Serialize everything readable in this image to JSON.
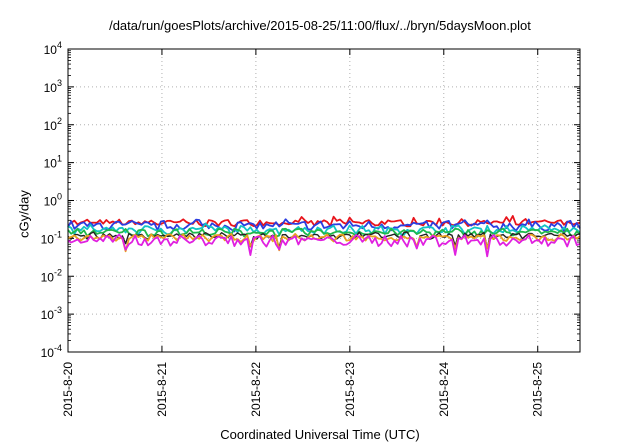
{
  "chart_data": {
    "type": "line",
    "title": "/data/run/goesPlots/archive/2015-08-25/11:00/flux/../bryn/5daysMoon.plot",
    "xlabel": "Coordinated Universal Time (UTC)",
    "ylabel": "cGy/day",
    "y_scale": "log",
    "ylim_exp": [
      -4,
      4
    ],
    "y_ticks": [
      {
        "base": "10",
        "exp": "4"
      },
      {
        "base": "10",
        "exp": "3"
      },
      {
        "base": "10",
        "exp": "2"
      },
      {
        "base": "10",
        "exp": "1"
      },
      {
        "base": "10",
        "exp": "0"
      },
      {
        "base": "10",
        "exp": "-1"
      },
      {
        "base": "10",
        "exp": "-2"
      },
      {
        "base": "10",
        "exp": "-3"
      },
      {
        "base": "10",
        "exp": "-4"
      }
    ],
    "x_ticks": [
      "2015-8-20",
      "2015-8-21",
      "2015-8-22",
      "2015-8-23",
      "2015-8-24",
      "2015-8-25"
    ],
    "x_range_days": [
      0,
      5.45
    ],
    "grid": true,
    "series": [
      {
        "color": "#e8141c",
        "base": 0.26,
        "spread": 0.05
      },
      {
        "color": "#2b3de0",
        "base": 0.22,
        "spread": 0.06
      },
      {
        "color": "#12c4c4",
        "base": 0.17,
        "spread": 0.04
      },
      {
        "color": "#1fb84a",
        "base": 0.145,
        "spread": 0.03
      },
      {
        "color": "#222222",
        "base": 0.12,
        "spread": 0.02
      },
      {
        "color": "#e8a020",
        "base": 0.105,
        "spread": 0.02
      },
      {
        "color": "#e020e0",
        "base": 0.09,
        "spread": 0.03
      }
    ]
  }
}
